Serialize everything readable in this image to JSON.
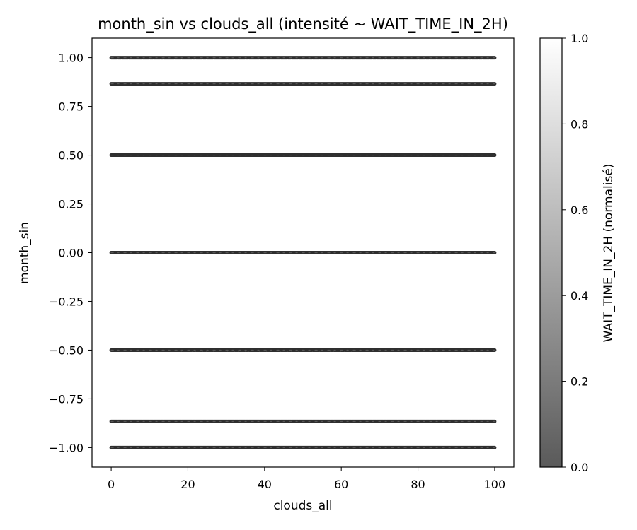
{
  "chart_data": {
    "type": "scatter",
    "title": "month_sin vs clouds_all (intensité ~ WAIT_TIME_IN_2H)",
    "xlabel": "clouds_all",
    "ylabel": "month_sin",
    "xlim": [
      -5,
      105
    ],
    "ylim": [
      -1.1,
      1.1
    ],
    "x_ticks": [
      0,
      20,
      40,
      60,
      80,
      100
    ],
    "x_tick_labels": [
      "0",
      "20",
      "40",
      "60",
      "80",
      "100"
    ],
    "y_ticks": [
      1.0,
      0.75,
      0.5,
      0.25,
      0.0,
      -0.25,
      -0.5,
      -0.75,
      -1.0
    ],
    "y_tick_labels": [
      "1.00",
      "0.75",
      "0.50",
      "0.25",
      "0.00",
      "−0.25",
      "−0.50",
      "−0.75",
      "−1.00"
    ],
    "series_levels": [
      1.0,
      0.866,
      0.5,
      0.0,
      -0.5,
      -0.866,
      -1.0
    ],
    "x_range_data": [
      0,
      100
    ],
    "marker_color": "#2f2f2f",
    "grid": false,
    "colorbar": {
      "label": "WAIT_TIME_IN_2H (normalisé)",
      "range": [
        0,
        1
      ],
      "ticks": [
        0.0,
        0.2,
        0.4,
        0.6,
        0.8,
        1.0
      ],
      "tick_labels": [
        "0.0",
        "0.2",
        "0.4",
        "0.6",
        "0.8",
        "1.0"
      ],
      "color_low": "#5a5a5a",
      "color_high": "#ffffff"
    }
  }
}
